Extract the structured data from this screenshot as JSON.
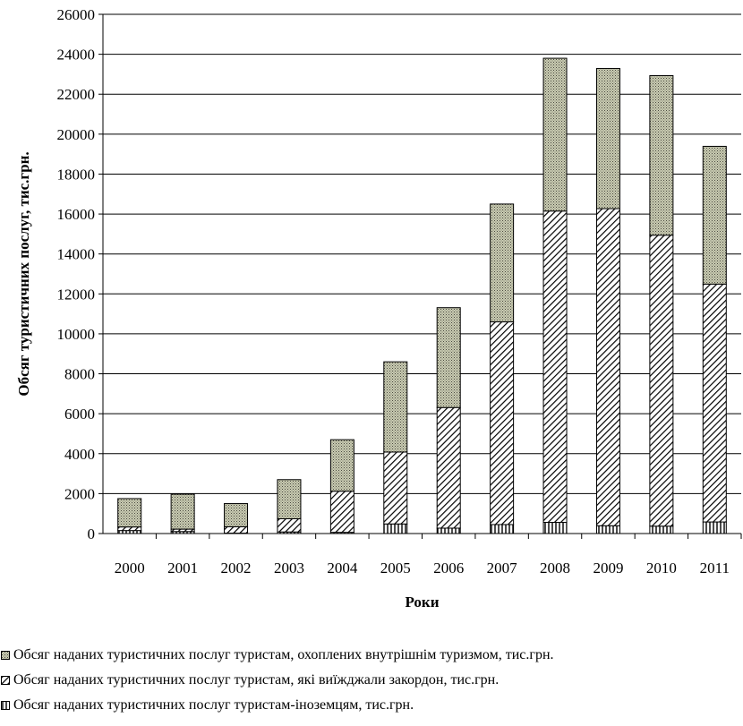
{
  "chart_data": {
    "type": "bar",
    "stacked": true,
    "title": "",
    "xlabel": "Роки",
    "ylabel": "Обсяг туристичних послуг, тис.грн.",
    "ylim": [
      0,
      26000
    ],
    "ytick_step": 2000,
    "ytick_labels": [
      "0",
      "2000",
      "4000",
      "6000",
      "8000",
      "10000",
      "12000",
      "14000",
      "16000",
      "18000",
      "20000",
      "22000",
      "24000",
      "26000"
    ],
    "grid": "horizontal",
    "legend_position": "bottom",
    "categories": [
      "2000",
      "2001",
      "2002",
      "2003",
      "2004",
      "2005",
      "2006",
      "2007",
      "2008",
      "2009",
      "2010",
      "2011"
    ],
    "series": [
      {
        "name": "Обсяг наданих туристичних послуг  туристам-іноземцям, тис.грн.",
        "pattern": "vertical-lines",
        "values": [
          150,
          100,
          20,
          80,
          60,
          480,
          270,
          450,
          560,
          390,
          370,
          580
        ]
      },
      {
        "name": "Обсяг наданих туристичних послуг туристам, які виїжджали закордон, тис.грн.",
        "pattern": "diagonal-stripes",
        "values": [
          180,
          120,
          320,
          660,
          2060,
          3600,
          6040,
          10150,
          15590,
          15880,
          14570,
          11910
        ]
      },
      {
        "name": "Обсяг наданих туристичних послуг туристам, охоплених внутрішнім туризмом, тис.грн.",
        "pattern": "crosshatch",
        "values": [
          1420,
          1750,
          1160,
          1960,
          2580,
          4520,
          5000,
          5900,
          7650,
          7020,
          7990,
          6900
        ]
      }
    ]
  }
}
